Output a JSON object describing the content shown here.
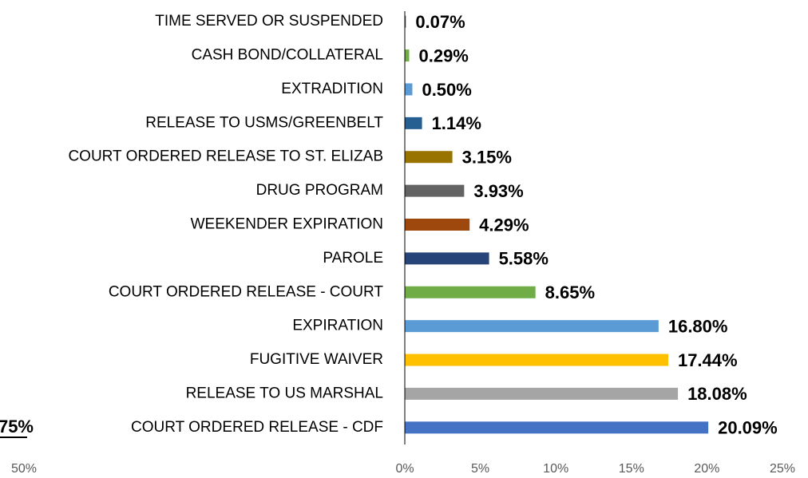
{
  "chart_data": {
    "type": "bar",
    "orientation": "horizontal",
    "categories": [
      "TIME SERVED OR SUSPENDED",
      "CASH BOND/COLLATERAL",
      "EXTRADITION",
      "RELEASE TO USMS/GREENBELT",
      "COURT ORDERED RELEASE TO ST. ELIZAB",
      "DRUG PROGRAM",
      "WEEKENDER EXPIRATION",
      "PAROLE",
      "COURT ORDERED RELEASE - COURT",
      "EXPIRATION",
      "FUGITIVE WAIVER",
      "RELEASE TO US MARSHAL",
      "COURT ORDERED RELEASE - CDF"
    ],
    "values": [
      0.07,
      0.29,
      0.5,
      1.14,
      3.15,
      3.93,
      4.29,
      5.58,
      8.65,
      16.8,
      17.44,
      18.08,
      20.09
    ],
    "value_labels": [
      "0.07%",
      "0.29%",
      "0.50%",
      "1.14%",
      "3.15%",
      "3.93%",
      "4.29%",
      "5.58%",
      "8.65%",
      "16.80%",
      "17.44%",
      "18.08%",
      "20.09%"
    ],
    "colors": [
      "#595959",
      "#70ad47",
      "#5b9bd5",
      "#255e91",
      "#997300",
      "#636363",
      "#9e480e",
      "#264478",
      "#70ad47",
      "#5b9bd5",
      "#ffc000",
      "#a5a5a5",
      "#4472c4"
    ],
    "xlim": [
      0,
      25
    ],
    "xticks": [
      {
        "value": 0,
        "label": "0%"
      },
      {
        "value": 5,
        "label": "5%"
      },
      {
        "value": 10,
        "label": "10%"
      },
      {
        "value": 15,
        "label": "15%"
      },
      {
        "value": 20,
        "label": "20%"
      },
      {
        "value": 25,
        "label": "25%"
      }
    ]
  },
  "clipped_texts": [
    "75%",
    "50%"
  ]
}
